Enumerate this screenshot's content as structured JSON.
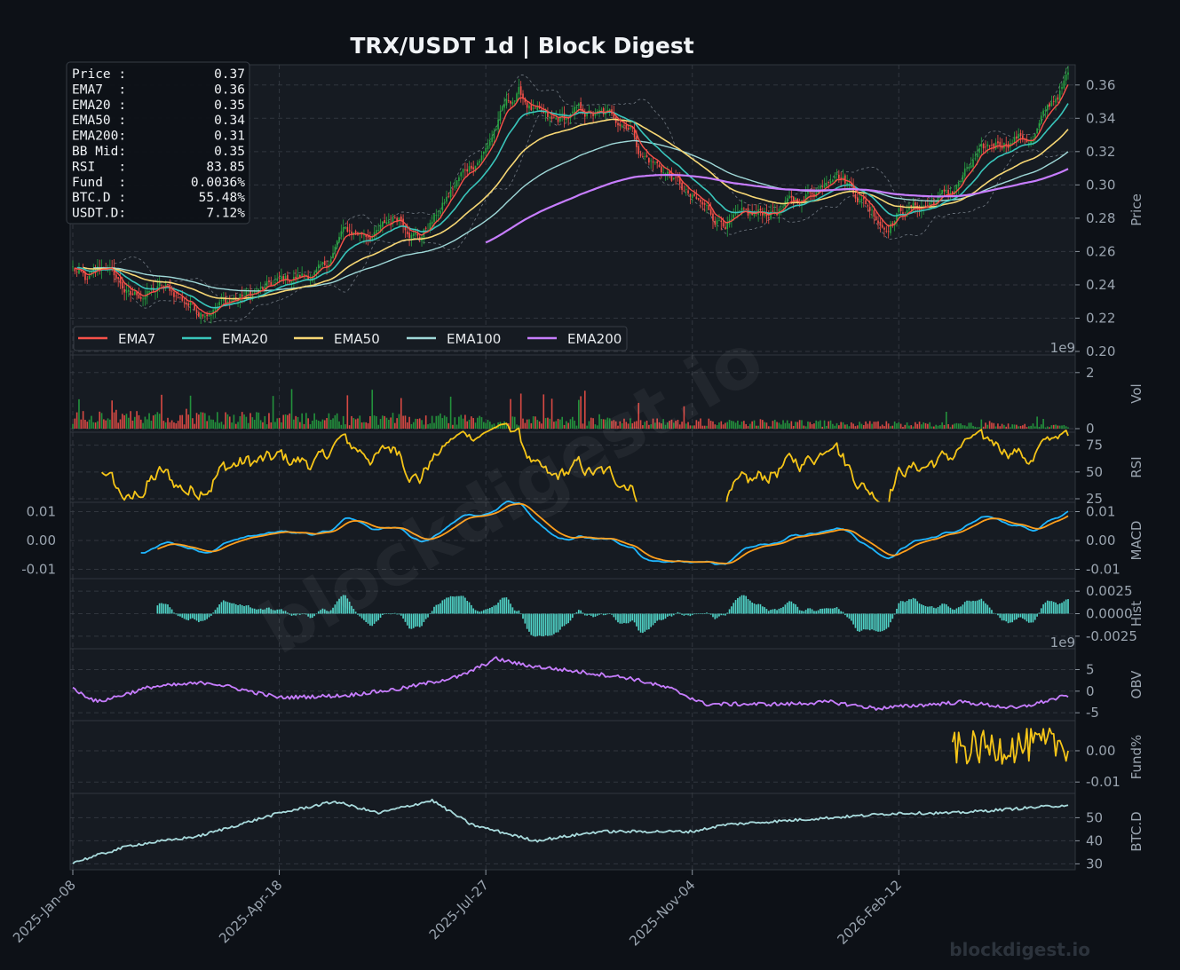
{
  "title": "TRX/USDT  1d  |  Block Digest",
  "watermark": "blockdigest.io",
  "footer": "blockdigest.io",
  "colors": {
    "background": "#0d1117",
    "panel": "#161b22",
    "grid": "#3a4048",
    "up_candle": "#26a641",
    "down_candle": "#f85149",
    "ema7": "#f85149",
    "ema20": "#39c5bb",
    "ema50": "#f7d774",
    "ema100": "#9fd8d8",
    "ema200": "#c77dff",
    "rsi": "#f5c518",
    "macd": "#1fb6ff",
    "signal": "#ff9f1c",
    "hist": "#4fd1c5",
    "obv": "#c77dff",
    "fund": "#f5c518",
    "btcd": "#a8dadc"
  },
  "info_box": [
    {
      "label": "Price :",
      "value": "0.37"
    },
    {
      "label": "EMA7  :",
      "value": "0.36"
    },
    {
      "label": "EMA20 :",
      "value": "0.35"
    },
    {
      "label": "EMA50 :",
      "value": "0.34"
    },
    {
      "label": "EMA200:",
      "value": "0.31"
    },
    {
      "label": "BB Mid:",
      "value": "0.35"
    },
    {
      "label": "RSI   :",
      "value": "83.85"
    },
    {
      "label": "Fund  :",
      "value": "0.0036%"
    },
    {
      "label": "BTC.D :",
      "value": "55.48%"
    },
    {
      "label": "USDT.D:",
      "value": "7.12%"
    }
  ],
  "legend": [
    "EMA7",
    "EMA20",
    "EMA50",
    "EMA100",
    "EMA200"
  ],
  "x_axis": {
    "start_date": "2025-01-08",
    "end_date": "2026-05-05",
    "ticks": [
      {
        "date": "2025-01-08",
        "label": "2025-Jan-08"
      },
      {
        "date": "2025-04-18",
        "label": "2025-Apr-18"
      },
      {
        "date": "2025-07-27",
        "label": "2025-Jul-27"
      },
      {
        "date": "2025-11-04",
        "label": "2025-Nov-04"
      },
      {
        "date": "2026-02-12",
        "label": "2026-Feb-12"
      }
    ]
  },
  "chart_data": {
    "type": "line",
    "x_unit": "date",
    "panels": [
      {
        "name": "price",
        "ylabel": "Price",
        "ylim": [
          0.2,
          0.37
        ],
        "yticks": [
          "0.20",
          "0.22",
          "0.24",
          "0.26",
          "0.28",
          "0.30",
          "0.32",
          "0.34",
          "0.36"
        ],
        "ytick_values": [
          0.2,
          0.22,
          0.24,
          0.26,
          0.28,
          0.3,
          0.32,
          0.34,
          0.36
        ],
        "price_anchors": [
          [
            "2025-01-08",
            0.25
          ],
          [
            "2025-01-15",
            0.24
          ],
          [
            "2025-01-24",
            0.251
          ],
          [
            "2025-02-05",
            0.232
          ],
          [
            "2025-02-20",
            0.238
          ],
          [
            "2025-03-10",
            0.226
          ],
          [
            "2025-03-25",
            0.231
          ],
          [
            "2025-04-10",
            0.236
          ],
          [
            "2025-04-25",
            0.244
          ],
          [
            "2025-05-10",
            0.248
          ],
          [
            "2025-05-18",
            0.27
          ],
          [
            "2025-06-05",
            0.272
          ],
          [
            "2025-06-15",
            0.282
          ],
          [
            "2025-06-25",
            0.27
          ],
          [
            "2025-07-05",
            0.285
          ],
          [
            "2025-07-15",
            0.305
          ],
          [
            "2025-07-27",
            0.322
          ],
          [
            "2025-08-05",
            0.346
          ],
          [
            "2025-08-12",
            0.355
          ],
          [
            "2025-08-22",
            0.34
          ],
          [
            "2025-08-28",
            0.335
          ],
          [
            "2025-09-10",
            0.343
          ],
          [
            "2025-09-25",
            0.34
          ],
          [
            "2025-10-05",
            0.338
          ],
          [
            "2025-10-10",
            0.32
          ],
          [
            "2025-10-25",
            0.305
          ],
          [
            "2025-11-04",
            0.29
          ],
          [
            "2025-11-15",
            0.28
          ],
          [
            "2025-12-01",
            0.278
          ],
          [
            "2025-12-15",
            0.285
          ],
          [
            "2025-12-28",
            0.292
          ],
          [
            "2026-01-05",
            0.3
          ],
          [
            "2026-01-12",
            0.313
          ],
          [
            "2026-01-20",
            0.3
          ],
          [
            "2026-02-01",
            0.283
          ],
          [
            "2026-02-05",
            0.277
          ],
          [
            "2026-02-12",
            0.285
          ],
          [
            "2026-02-25",
            0.288
          ],
          [
            "2026-03-10",
            0.296
          ],
          [
            "2026-03-20",
            0.312
          ],
          [
            "2026-04-01",
            0.325
          ],
          [
            "2026-04-10",
            0.33
          ],
          [
            "2026-04-18",
            0.328
          ],
          [
            "2026-04-25",
            0.344
          ],
          [
            "2026-05-05",
            0.365
          ]
        ],
        "ema200_start": "2025-07-27"
      },
      {
        "name": "volume",
        "ylabel": "Vol",
        "ylim": [
          0,
          2.5
        ],
        "yticks": [
          "0",
          "2"
        ],
        "ytick_values": [
          0,
          2
        ],
        "multiplier": "1e9"
      },
      {
        "name": "rsi",
        "ylabel": "RSI",
        "ylim": [
          25,
          83.85
        ],
        "yticks": [
          "25",
          "50",
          "75"
        ],
        "ytick_values": [
          25,
          50,
          75
        ],
        "last_value": 83.85
      },
      {
        "name": "macd",
        "ylabel": "MACD",
        "ylim": [
          -0.012,
          0.012
        ],
        "yticks": [
          "-0.01",
          "0.00",
          "0.01"
        ],
        "ytick_values": [
          -0.01,
          0.0,
          0.01
        ]
      },
      {
        "name": "hist",
        "ylabel": "Hist",
        "ylim": [
          -0.0035,
          0.0035
        ],
        "yticks": [
          "-0.0025",
          "0.0000",
          "0.0025"
        ],
        "ytick_values": [
          -0.0025,
          0.0,
          0.0025
        ]
      },
      {
        "name": "obv",
        "ylabel": "OBV",
        "ylim": [
          -6,
          9
        ],
        "yticks": [
          "-5",
          "0",
          "5"
        ],
        "ytick_values": [
          -5,
          0,
          5
        ],
        "multiplier": "1e9",
        "anchors": [
          [
            "2025-01-08",
            0.5
          ],
          [
            "2025-01-20",
            -2.5
          ],
          [
            "2025-02-15",
            1.0
          ],
          [
            "2025-03-15",
            2.0
          ],
          [
            "2025-04-18",
            -1.5
          ],
          [
            "2025-05-20",
            -1.0
          ],
          [
            "2025-06-15",
            0.5
          ],
          [
            "2025-07-15",
            3.5
          ],
          [
            "2025-08-01",
            7.5
          ],
          [
            "2025-08-15",
            6.0
          ],
          [
            "2025-09-10",
            4.5
          ],
          [
            "2025-10-05",
            3.0
          ],
          [
            "2025-10-25",
            0.5
          ],
          [
            "2025-11-10",
            -3.0
          ],
          [
            "2025-12-20",
            -3.0
          ],
          [
            "2026-01-10",
            -2.5
          ],
          [
            "2026-02-01",
            -4.0
          ],
          [
            "2026-03-15",
            -2.5
          ],
          [
            "2026-04-10",
            -4.0
          ],
          [
            "2026-05-05",
            -1.0
          ]
        ]
      },
      {
        "name": "funding",
        "ylabel": "Fund%",
        "ylim": [
          -0.0125,
          0.0085
        ],
        "yticks": [
          "-0.01",
          "0.00"
        ],
        "ytick_values": [
          -0.01,
          0.0
        ],
        "start": "2026-03-10",
        "last_value": 0.0036
      },
      {
        "name": "btc_dominance",
        "ylabel": "BTC.D",
        "ylim": [
          29,
          59
        ],
        "yticks": [
          "30",
          "40",
          "50"
        ],
        "ytick_values": [
          30,
          40,
          50
        ],
        "last_value": 55.48,
        "anchors": [
          [
            "2025-01-08",
            30.5
          ],
          [
            "2025-02-05",
            38.0
          ],
          [
            "2025-03-10",
            42.0
          ],
          [
            "2025-04-18",
            52.0
          ],
          [
            "2025-05-15",
            57.0
          ],
          [
            "2025-06-05",
            52.0
          ],
          [
            "2025-07-01",
            57.5
          ],
          [
            "2025-07-20",
            47.0
          ],
          [
            "2025-08-20",
            40.0
          ],
          [
            "2025-09-20",
            44.0
          ],
          [
            "2025-11-04",
            44.0
          ],
          [
            "2025-11-20",
            47.0
          ],
          [
            "2026-01-10",
            50.0
          ],
          [
            "2026-02-12",
            52.0
          ],
          [
            "2026-03-10",
            52.0
          ],
          [
            "2026-05-05",
            55.48
          ]
        ]
      }
    ]
  }
}
